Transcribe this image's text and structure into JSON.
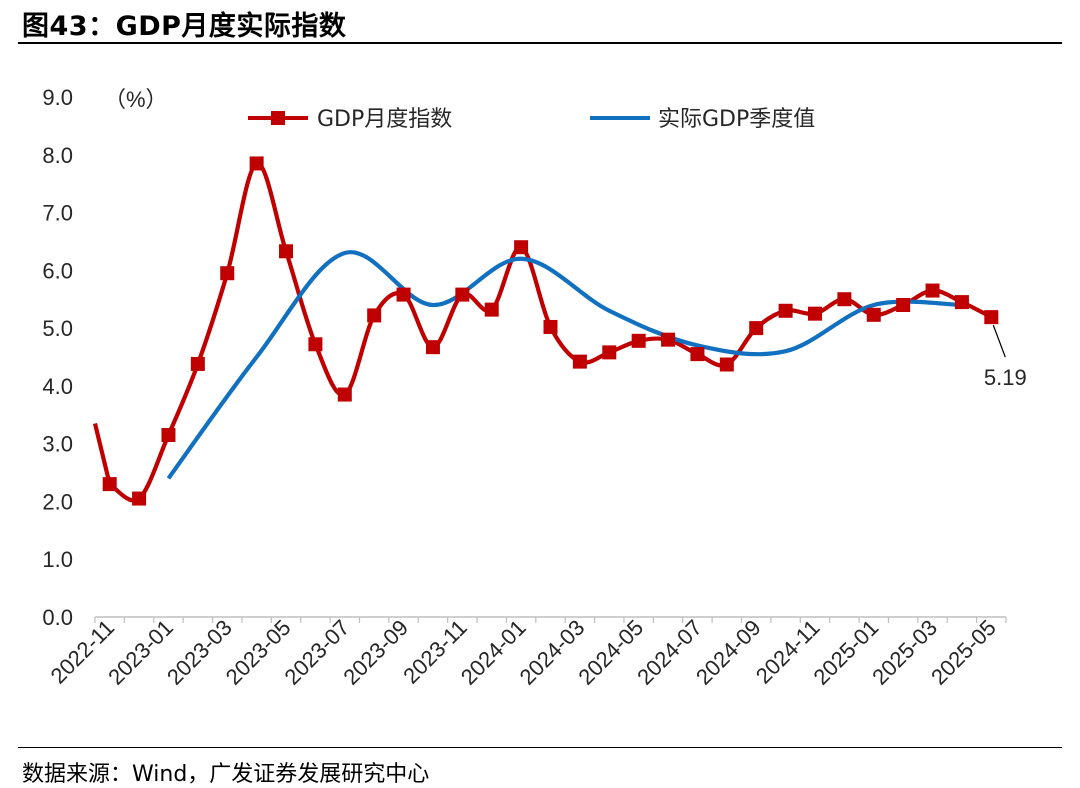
{
  "title": "图43：GDP月度实际指数",
  "source": "数据来源：Wind，广发证券发展研究中心",
  "chart_data": {
    "type": "line",
    "title": "GDP月度实际指数",
    "ylabel": "（%）",
    "ylim": [
      0,
      9
    ],
    "yticks": [
      "0.0",
      "1.0",
      "2.0",
      "3.0",
      "4.0",
      "5.0",
      "6.0",
      "7.0",
      "8.0",
      "9.0"
    ],
    "x_tick_labels": [
      "2022-11",
      "2023-01",
      "2023-03",
      "2023-05",
      "2023-07",
      "2023-09",
      "2023-11",
      "2024-01",
      "2024-03",
      "2024-05",
      "2024-07",
      "2024-09",
      "2024-11",
      "2025-01",
      "2025-03",
      "2025-05"
    ],
    "legend_position": "top",
    "series": [
      {
        "name": "GDP月度指数",
        "color": "#C00000",
        "marker": "square",
        "x": [
          "2022-11",
          "2022-12",
          "2023-01",
          "2023-02",
          "2023-03",
          "2023-04",
          "2023-05",
          "2023-06",
          "2023-07",
          "2023-08",
          "2023-09",
          "2023-10",
          "2023-11",
          "2023-12",
          "2024-01",
          "2024-02",
          "2024-03",
          "2024-04",
          "2024-05",
          "2024-06",
          "2024-07",
          "2024-08",
          "2024-09",
          "2024-10",
          "2024-11",
          "2024-12",
          "2025-01",
          "2025-02",
          "2025-03",
          "2025-04",
          "2025-05"
        ],
        "values": [
          2.3,
          2.05,
          3.15,
          4.38,
          5.95,
          7.85,
          6.33,
          4.72,
          3.85,
          5.22,
          5.58,
          4.67,
          5.58,
          5.32,
          6.4,
          5.02,
          4.42,
          4.58,
          4.78,
          4.8,
          4.55,
          4.37,
          5.0,
          5.3,
          5.25,
          5.5,
          5.23,
          5.4,
          5.65,
          5.45,
          5.19
        ]
      },
      {
        "name": "实际GDP季度值",
        "color": "#1170C0",
        "marker": "none",
        "x": [
          "2023-01",
          "2023-04",
          "2023-07",
          "2023-10",
          "2024-01",
          "2024-04",
          "2024-07",
          "2024-10",
          "2025-01",
          "2025-04"
        ],
        "values": [
          2.4,
          4.5,
          6.3,
          5.4,
          6.2,
          5.3,
          4.7,
          4.6,
          5.4,
          5.4
        ]
      }
    ],
    "annotations": [
      {
        "text": "5.19",
        "target": "2025-05"
      }
    ]
  }
}
